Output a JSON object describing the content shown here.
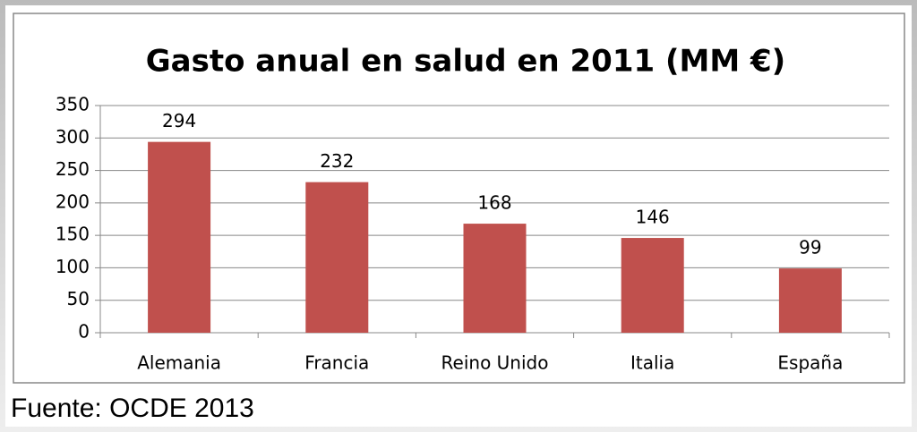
{
  "chart_data": {
    "type": "bar",
    "title": "Gasto anual en salud en 2011 (MM €)",
    "categories": [
      "Alemania",
      "Francia",
      "Reino Unido",
      "Italia",
      "España"
    ],
    "values": [
      294,
      232,
      168,
      146,
      99
    ],
    "color": "#c0504d",
    "ylim": [
      0,
      350
    ],
    "yticks": [
      0,
      50,
      100,
      150,
      200,
      250,
      300,
      350
    ],
    "grid": true,
    "source": "Fuente: OCDE 2013"
  }
}
